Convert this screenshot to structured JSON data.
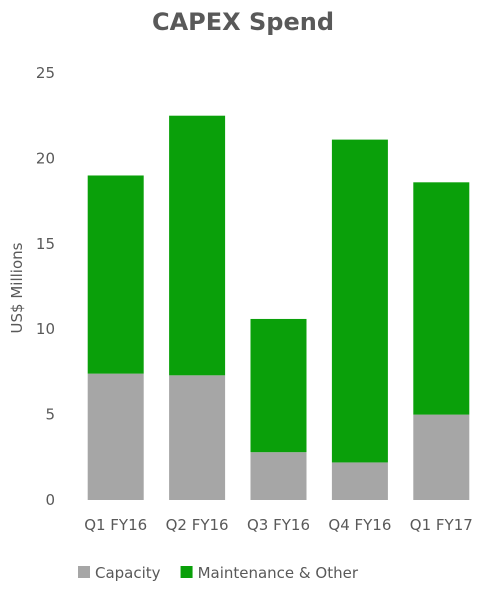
{
  "chart_data": {
    "type": "bar",
    "stacked": true,
    "title": "CAPEX Spend",
    "xlabel": "",
    "ylabel": "US$ Millions",
    "ylim": [
      0,
      25
    ],
    "yticks": [
      0,
      5,
      10,
      15,
      20,
      25
    ],
    "grid": false,
    "legend_position": "bottom",
    "categories": [
      "Q1 FY16",
      "Q2 FY16",
      "Q3 FY16",
      "Q4 FY16",
      "Q1 FY17"
    ],
    "series": [
      {
        "name": "Capacity",
        "color": "#a6a6a6",
        "values": [
          7.4,
          7.3,
          2.8,
          2.2,
          5.0
        ]
      },
      {
        "name": "Maintenance & Other",
        "color": "#0aa00a",
        "values": [
          11.6,
          15.2,
          7.8,
          18.9,
          13.6
        ]
      }
    ]
  }
}
